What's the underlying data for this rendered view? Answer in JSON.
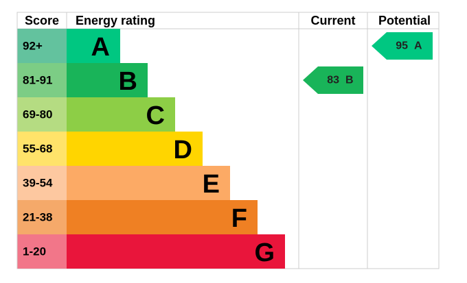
{
  "chart_data": {
    "type": "epc",
    "headers": {
      "score": "Score",
      "rating": "Energy rating",
      "current": "Current",
      "potential": "Potential"
    },
    "rows": [
      {
        "score": "92+",
        "letter": "A",
        "color": "#00c781",
        "score_color": "#63c29e"
      },
      {
        "score": "81-91",
        "letter": "B",
        "color": "#19b459",
        "score_color": "#7ccd85"
      },
      {
        "score": "69-80",
        "letter": "C",
        "color": "#8dce46",
        "score_color": "#b5dc82"
      },
      {
        "score": "55-68",
        "letter": "D",
        "color": "#ffd500",
        "score_color": "#ffe36a"
      },
      {
        "score": "39-54",
        "letter": "E",
        "color": "#fcaa65",
        "score_color": "#fdc8a0"
      },
      {
        "score": "21-38",
        "letter": "F",
        "color": "#ef8023",
        "score_color": "#f5a96a"
      },
      {
        "score": "1-20",
        "letter": "G",
        "color": "#e9153b",
        "score_color": "#f27689"
      }
    ],
    "current": {
      "value": 83,
      "letter": "B"
    },
    "potential": {
      "value": 95,
      "letter": "A"
    }
  }
}
